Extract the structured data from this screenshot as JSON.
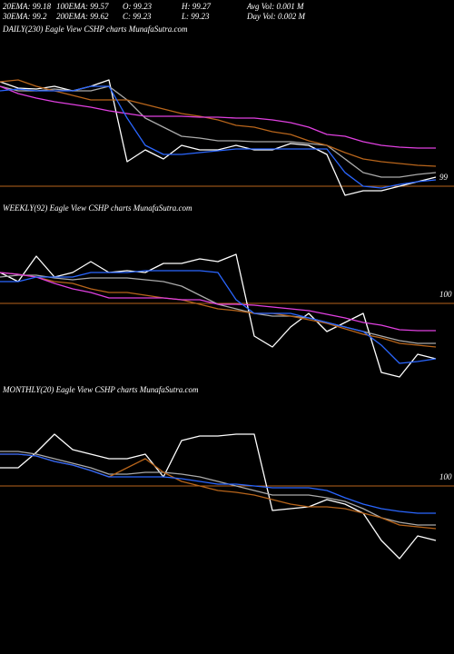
{
  "header": {
    "rows": [
      [
        "20EMA: 99.18",
        "100EMA: 99.57",
        "O: 99.23",
        "H: 99.27",
        "Avg Vol: 0.001 M"
      ],
      [
        "30EMA: 99.2",
        "200EMA: 99.62",
        "C: 99.23",
        "L: 99.23",
        "Day Vol: 0.002 M"
      ]
    ]
  },
  "chart_data": [
    {
      "type": "line",
      "title": "DAILY(230) Eagle  View  CSHP charts MunafaSutra.com",
      "ylim": [
        98.9,
        100.3
      ],
      "yticks": [
        99
      ],
      "grid": true,
      "series": [
        {
          "color": "#ffffff",
          "values": [
            100.15,
            100.08,
            100.07,
            100.1,
            100.05,
            100.1,
            100.17,
            99.27,
            99.4,
            99.3,
            99.45,
            99.4,
            99.4,
            99.45,
            99.4,
            99.4,
            99.47,
            99.45,
            99.35,
            98.9,
            98.95,
            98.95,
            99.0,
            99.05,
            99.1
          ]
        },
        {
          "color": "#aaaaaa",
          "values": [
            100.1,
            100.05,
            100.05,
            100.07,
            100.05,
            100.05,
            100.1,
            99.95,
            99.75,
            99.65,
            99.55,
            99.53,
            99.5,
            99.5,
            99.49,
            99.49,
            99.49,
            99.47,
            99.45,
            99.3,
            99.15,
            99.1,
            99.1,
            99.13,
            99.15
          ]
        },
        {
          "color": "#b8651b",
          "values": [
            100.15,
            100.17,
            100.1,
            100.05,
            100.0,
            99.95,
            99.95,
            99.95,
            99.9,
            99.85,
            99.8,
            99.77,
            99.73,
            99.67,
            99.65,
            99.6,
            99.57,
            99.5,
            99.45,
            99.37,
            99.3,
            99.27,
            99.25,
            99.23,
            99.22
          ]
        },
        {
          "color": "#e040e0",
          "values": [
            100.1,
            100.02,
            99.97,
            99.93,
            99.9,
            99.87,
            99.83,
            99.8,
            99.77,
            99.77,
            99.77,
            99.76,
            99.76,
            99.75,
            99.75,
            99.73,
            99.7,
            99.65,
            99.57,
            99.55,
            99.49,
            99.45,
            99.43,
            99.42,
            99.42
          ]
        },
        {
          "color": "#2a66ff",
          "values": [
            100.05,
            100.07,
            100.05,
            100.05,
            100.05,
            100.1,
            100.1,
            99.75,
            99.45,
            99.35,
            99.35,
            99.37,
            99.39,
            99.41,
            99.41,
            99.41,
            99.41,
            99.41,
            99.41,
            99.15,
            99.0,
            98.98,
            99.02,
            99.05,
            99.07
          ]
        }
      ]
    },
    {
      "type": "line",
      "title": "WEEKLY(92) Eagle  View  CSHP charts MunafaSutra.com",
      "ylim": [
        99.14,
        100.94
      ],
      "yticks": [
        100
      ],
      "grid": true,
      "series": [
        {
          "color": "#ffffff",
          "values": [
            100.34,
            100.24,
            100.52,
            100.29,
            100.34,
            100.46,
            100.34,
            100.36,
            100.34,
            100.44,
            100.44,
            100.49,
            100.46,
            100.54,
            99.64,
            99.52,
            99.74,
            99.89,
            99.69,
            99.79,
            99.89,
            99.24,
            99.19,
            99.44,
            99.39
          ]
        },
        {
          "color": "#aaaaaa",
          "values": [
            100.29,
            100.31,
            100.31,
            100.28,
            100.26,
            100.28,
            100.28,
            100.28,
            100.26,
            100.24,
            100.19,
            100.09,
            99.99,
            99.94,
            99.89,
            99.86,
            99.86,
            99.84,
            99.79,
            99.74,
            99.69,
            99.64,
            99.59,
            99.56,
            99.56
          ]
        },
        {
          "color": "#b8651b",
          "values": [
            100.34,
            100.32,
            100.29,
            100.24,
            100.22,
            100.16,
            100.12,
            100.12,
            100.09,
            100.06,
            100.04,
            99.99,
            99.94,
            99.92,
            99.89,
            99.89,
            99.86,
            99.82,
            99.78,
            99.72,
            99.66,
            99.62,
            99.56,
            99.54,
            99.52
          ]
        },
        {
          "color": "#e040e0",
          "values": [
            100.34,
            100.32,
            100.29,
            100.22,
            100.16,
            100.12,
            100.06,
            100.06,
            100.06,
            100.06,
            100.04,
            100.04,
            99.99,
            99.99,
            99.98,
            99.96,
            99.94,
            99.92,
            99.88,
            99.84,
            99.79,
            99.76,
            99.71,
            99.7,
            99.7
          ]
        },
        {
          "color": "#2a66ff",
          "values": [
            100.24,
            100.24,
            100.29,
            100.29,
            100.29,
            100.34,
            100.34,
            100.34,
            100.36,
            100.36,
            100.36,
            100.36,
            100.34,
            100.04,
            99.89,
            99.89,
            99.89,
            99.84,
            99.79,
            99.74,
            99.69,
            99.54,
            99.34,
            99.36,
            99.39
          ]
        }
      ]
    },
    {
      "type": "line",
      "title": "MONTHLY(20) Eagle  View  CSHP charts MunafaSutra.com",
      "ylim": [
        99.15,
        100.95
      ],
      "yticks": [
        100
      ],
      "grid": true,
      "series": [
        {
          "color": "#ffffff",
          "values": [
            100.2,
            100.2,
            100.37,
            100.57,
            100.4,
            100.35,
            100.3,
            100.3,
            100.35,
            100.1,
            100.5,
            100.55,
            100.55,
            100.57,
            100.57,
            99.73,
            99.75,
            99.77,
            99.85,
            99.8,
            99.7,
            99.4,
            99.2,
            99.45,
            99.4
          ]
        },
        {
          "color": "#aaaaaa",
          "values": [
            100.38,
            100.38,
            100.35,
            100.3,
            100.25,
            100.2,
            100.13,
            100.13,
            100.15,
            100.15,
            100.13,
            100.1,
            100.05,
            100.0,
            99.95,
            99.9,
            99.9,
            99.9,
            99.87,
            99.83,
            99.75,
            99.65,
            99.6,
            99.57,
            99.57
          ]
        },
        {
          "color": "#b8651b",
          "values": [
            100.35,
            100.35,
            100.33,
            100.27,
            100.23,
            100.17,
            100.1,
            100.2,
            100.3,
            100.15,
            100.05,
            100.0,
            99.95,
            99.93,
            99.9,
            99.85,
            99.8,
            99.77,
            99.77,
            99.75,
            99.7,
            99.65,
            99.57,
            99.55,
            99.53
          ]
        },
        {
          "color": "#2a66ff",
          "values": [
            100.35,
            100.35,
            100.33,
            100.27,
            100.23,
            100.17,
            100.1,
            100.1,
            100.1,
            100.1,
            100.08,
            100.05,
            100.02,
            100.02,
            100.0,
            99.98,
            99.98,
            99.98,
            99.95,
            99.87,
            99.8,
            99.75,
            99.72,
            99.7,
            99.7
          ]
        }
      ]
    }
  ]
}
